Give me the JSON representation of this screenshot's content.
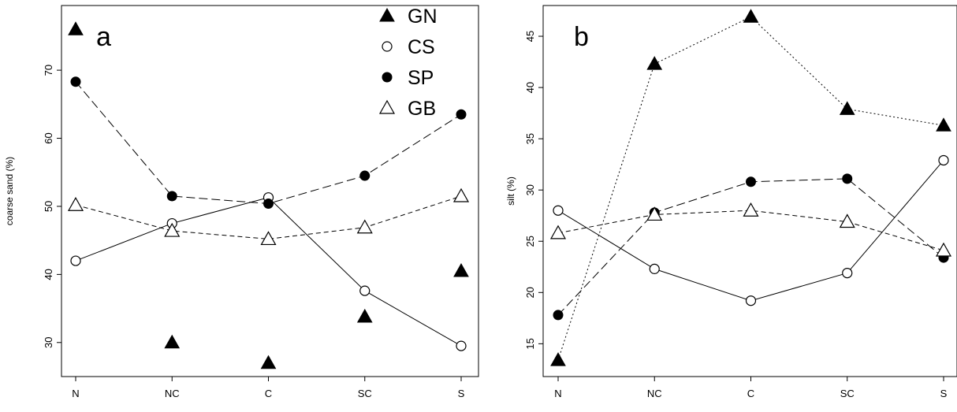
{
  "chart_data": [
    {
      "type": "scatter",
      "panel_label": "a",
      "ylabel": "coarse sand (%)",
      "xlabel": "",
      "categories": [
        "N",
        "NC",
        "C",
        "SC",
        "S"
      ],
      "yticks": [
        30,
        40,
        50,
        60,
        70
      ],
      "ylim": [
        25,
        79.5
      ],
      "legend": {
        "placement": "top-right",
        "entries": [
          {
            "name": "GN",
            "marker": "filled-triangle"
          },
          {
            "name": "CS",
            "marker": "open-circle"
          },
          {
            "name": "SP",
            "marker": "filled-circle"
          },
          {
            "name": "GB",
            "marker": "open-triangle"
          }
        ]
      },
      "series": [
        {
          "name": "GN",
          "marker": "filled-triangle",
          "line": "none",
          "values": [
            76.0,
            30.0,
            27.0,
            33.8,
            40.5
          ]
        },
        {
          "name": "CS",
          "marker": "open-circle",
          "line": "solid",
          "values": [
            42.0,
            47.5,
            51.3,
            37.6,
            29.5
          ]
        },
        {
          "name": "SP",
          "marker": "filled-circle",
          "line": "longdash",
          "values": [
            68.3,
            51.5,
            50.4,
            54.5,
            63.5
          ]
        },
        {
          "name": "GB",
          "marker": "open-triangle",
          "line": "dashed",
          "values": [
            50.2,
            46.4,
            45.2,
            46.9,
            51.5
          ]
        }
      ]
    },
    {
      "type": "line",
      "panel_label": "b",
      "ylabel": "silt (%)",
      "xlabel": "",
      "categories": [
        "N",
        "NC",
        "C",
        "SC",
        "S"
      ],
      "yticks": [
        15,
        20,
        25,
        30,
        35,
        40,
        45
      ],
      "ylim": [
        11.8,
        48.0
      ],
      "series": [
        {
          "name": "GN",
          "marker": "filled-triangle",
          "line": "dotted",
          "values": [
            13.4,
            42.3,
            46.9,
            37.9,
            36.3
          ]
        },
        {
          "name": "CS",
          "marker": "open-circle",
          "line": "solid",
          "values": [
            28.0,
            22.3,
            19.2,
            21.9,
            32.9
          ]
        },
        {
          "name": "SP",
          "marker": "filled-circle",
          "line": "longdash",
          "values": [
            17.8,
            27.8,
            30.8,
            31.1,
            23.4
          ]
        },
        {
          "name": "GB",
          "marker": "open-triangle",
          "line": "dashed",
          "values": [
            25.8,
            27.6,
            28.0,
            26.9,
            24.1
          ]
        }
      ]
    }
  ]
}
